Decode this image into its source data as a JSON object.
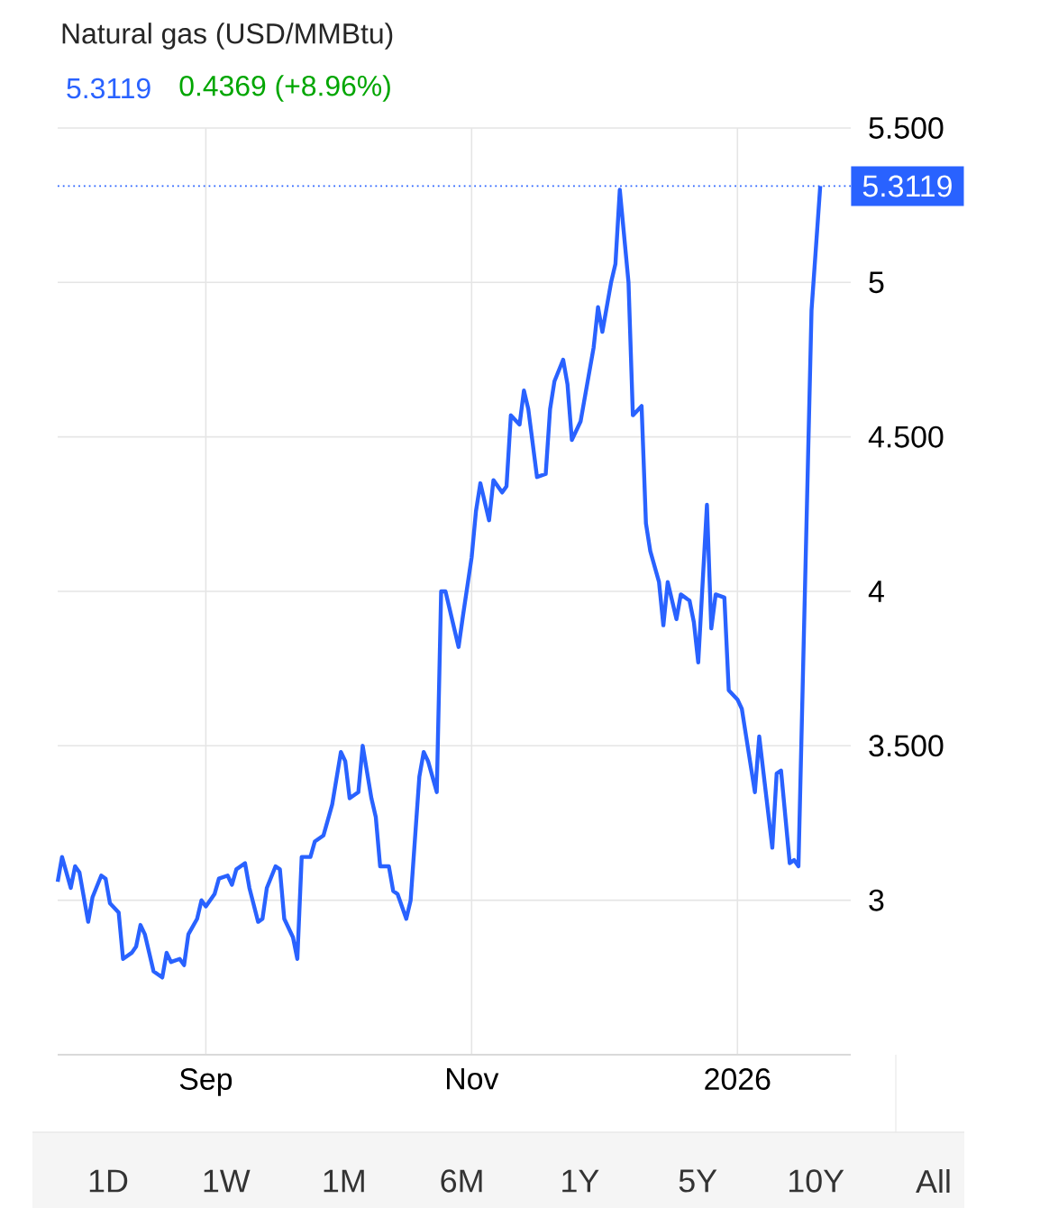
{
  "chart_data": {
    "type": "line",
    "title": "Natural gas (USD/MMBtu)",
    "subtitle": "5.3119",
    "annotations": [
      "0.4369 (+8.96%)",
      "1D",
      "1W",
      "1M",
      "6M",
      "1Y",
      "5Y",
      "10Y",
      "All"
    ],
    "x": [
      "2025-07-29",
      "2025-07-30",
      "2025-08-01",
      "2025-08-02",
      "2025-08-03",
      "2025-08-05",
      "2025-08-06",
      "2025-08-08",
      "2025-08-09",
      "2025-08-10",
      "2025-08-12",
      "2025-08-13",
      "2025-08-15",
      "2025-08-16",
      "2025-08-17",
      "2025-08-18",
      "2025-08-20",
      "2025-08-22",
      "2025-08-23",
      "2025-08-24",
      "2025-08-26",
      "2025-08-27",
      "2025-08-28",
      "2025-08-30",
      "2025-08-31",
      "2025-09-01",
      "2025-09-03",
      "2025-09-04",
      "2025-09-06",
      "2025-09-07",
      "2025-09-08",
      "2025-09-10",
      "2025-09-11",
      "2025-09-13",
      "2025-09-14",
      "2025-09-15",
      "2025-09-17",
      "2025-09-18",
      "2025-09-19",
      "2025-09-21",
      "2025-09-22",
      "2025-09-23",
      "2025-09-25",
      "2025-09-26",
      "2025-09-28",
      "2025-09-29",
      "2025-09-30",
      "2025-10-02",
      "2025-10-03",
      "2025-10-04",
      "2025-10-06",
      "2025-10-07",
      "2025-10-09",
      "2025-10-10",
      "2025-10-11",
      "2025-10-13",
      "2025-10-14",
      "2025-10-15",
      "2025-10-17",
      "2025-10-18",
      "2025-10-20",
      "2025-10-21",
      "2025-10-22",
      "2025-10-24",
      "2025-10-25",
      "2025-10-26",
      "2025-10-28",
      "2025-10-29",
      "2025-10-30",
      "2025-11-01",
      "2025-11-02",
      "2025-11-03",
      "2025-11-05",
      "2025-11-06",
      "2025-11-08",
      "2025-11-09",
      "2025-11-10",
      "2025-11-12",
      "2025-11-13",
      "2025-11-14",
      "2025-11-16",
      "2025-11-18",
      "2025-11-19",
      "2025-11-20",
      "2025-11-22",
      "2025-11-23",
      "2025-11-24",
      "2025-11-26",
      "2025-11-27",
      "2025-11-29",
      "2025-11-30",
      "2025-12-01",
      "2025-12-03",
      "2025-12-04",
      "2025-12-05",
      "2025-12-07",
      "2025-12-08",
      "2025-12-10",
      "2025-12-11",
      "2025-12-12",
      "2025-12-14",
      "2025-12-15",
      "2025-12-16",
      "2025-12-18",
      "2025-12-19",
      "2025-12-21",
      "2025-12-22",
      "2025-12-23",
      "2025-12-25",
      "2025-12-26",
      "2025-12-27",
      "2025-12-29",
      "2025-12-30",
      "2026-01-01",
      "2026-01-02",
      "2026-01-03",
      "2026-01-05",
      "2026-01-06",
      "2026-01-07",
      "2026-01-09",
      "2026-01-10",
      "2026-01-11",
      "2026-01-13",
      "2026-01-14",
      "2026-01-15",
      "2026-01-18",
      "2026-01-20"
    ],
    "series": [
      {
        "color": "#2962ff",
        "values": [
          3.06,
          3.14,
          3.04,
          3.11,
          3.09,
          2.93,
          3.01,
          3.08,
          3.07,
          2.99,
          2.96,
          2.81,
          2.83,
          2.85,
          2.92,
          2.89,
          2.77,
          2.75,
          2.83,
          2.8,
          2.81,
          2.79,
          2.89,
          2.94,
          3.0,
          2.98,
          3.02,
          3.07,
          3.08,
          3.05,
          3.1,
          3.12,
          3.04,
          2.93,
          2.94,
          3.04,
          3.11,
          3.1,
          2.94,
          2.88,
          2.81,
          3.14,
          3.14,
          3.19,
          3.21,
          3.26,
          3.31,
          3.48,
          3.45,
          3.33,
          3.35,
          3.5,
          3.33,
          3.27,
          3.11,
          3.11,
          3.03,
          3.02,
          2.94,
          3.0,
          3.4,
          3.48,
          3.45,
          3.35,
          4.0,
          4.0,
          3.88,
          3.82,
          3.92,
          4.11,
          4.26,
          4.35,
          4.23,
          4.36,
          4.32,
          4.34,
          4.57,
          4.54,
          4.65,
          4.59,
          4.37,
          4.38,
          4.59,
          4.68,
          4.75,
          4.67,
          4.49,
          4.55,
          4.63,
          4.79,
          4.92,
          4.84,
          5.0,
          5.06,
          5.3,
          5.0,
          4.57,
          4.6,
          4.22,
          4.13,
          4.03,
          3.89,
          4.03,
          3.91,
          3.99,
          3.97,
          3.9,
          3.77,
          4.28,
          3.88,
          3.99,
          3.98,
          3.68,
          3.65,
          3.62,
          3.53,
          3.35,
          3.53,
          3.41,
          3.17,
          3.41,
          3.42,
          3.12,
          3.13,
          3.11,
          4.91,
          5.3119
        ]
      }
    ],
    "xlim": [
      "2025-07-29",
      "2026-01-27"
    ],
    "xticks": [
      {
        "value": "2025-09-01",
        "label": "Sep"
      },
      {
        "value": "2025-11-01",
        "label": "Nov"
      },
      {
        "value": "2026-01-01",
        "label": "2026"
      }
    ],
    "ylim": [
      2.5,
      5.5
    ],
    "yticks": [
      3,
      {
        "value": 3.5,
        "label": "3.500"
      },
      4,
      {
        "value": 4.5,
        "label": "4.500"
      },
      5,
      {
        "value": 5.5,
        "label": "5.500"
      }
    ],
    "grid": true,
    "ref_lines": [
      {
        "axis": "y",
        "value": 5.3119,
        "label": "5.3119",
        "color": "#2962ff",
        "line_style": "dotted"
      }
    ]
  }
}
